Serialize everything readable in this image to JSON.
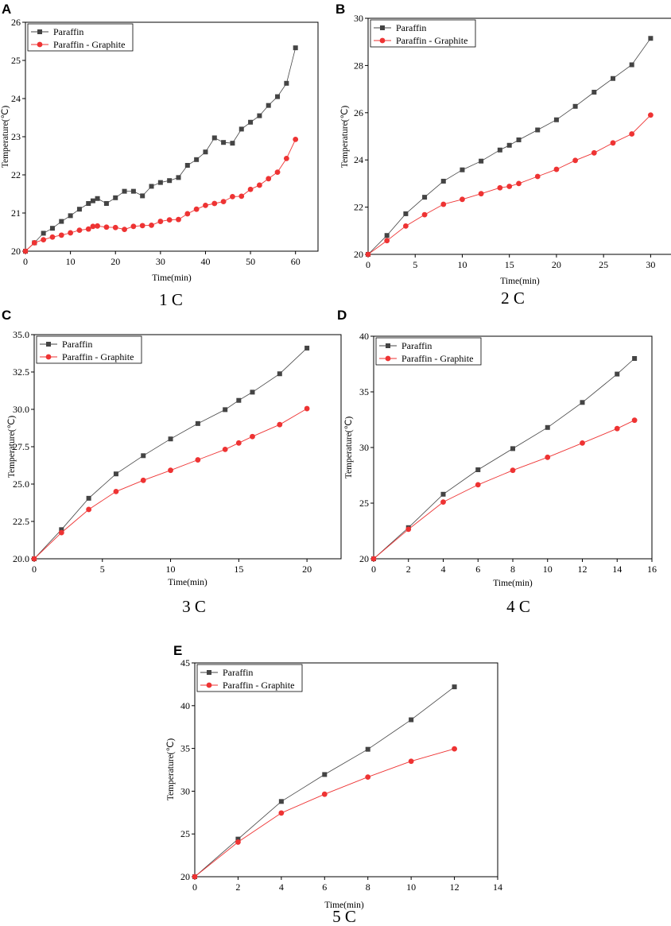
{
  "chart_data": [
    {
      "panel": "A",
      "caption": "1 C",
      "type": "line",
      "xlabel": "Time(min)",
      "ylabel": "Temperature(℃)",
      "xlim": [
        0,
        65
      ],
      "ylim": [
        20,
        26
      ],
      "xticks": [
        0,
        10,
        20,
        30,
        40,
        50,
        60
      ],
      "yticks": [
        20,
        21,
        22,
        23,
        24,
        25,
        26
      ],
      "xtick_labels": [
        "0",
        "10",
        "20",
        "30",
        "40",
        "50",
        "60"
      ],
      "ytick_labels": [
        "20",
        "21",
        "22",
        "23",
        "24",
        "25",
        "26"
      ],
      "legend_position": "top-left",
      "series": [
        {
          "name": "Paraffin",
          "color": "#444444",
          "marker": "square",
          "x": [
            0,
            2,
            4,
            6,
            8,
            10,
            12,
            14,
            15,
            16,
            18,
            20,
            22,
            24,
            26,
            28,
            30,
            32,
            34,
            36,
            38,
            40,
            42,
            44,
            46,
            48,
            50,
            52,
            54,
            56,
            58,
            60
          ],
          "y": [
            20.0,
            20.22,
            20.47,
            20.6,
            20.78,
            20.93,
            21.1,
            21.25,
            21.32,
            21.38,
            21.25,
            21.4,
            21.57,
            21.57,
            21.45,
            21.7,
            21.8,
            21.85,
            21.93,
            22.25,
            22.4,
            22.6,
            22.97,
            22.85,
            22.83,
            23.2,
            23.38,
            23.55,
            23.82,
            24.05,
            24.4,
            25.33
          ]
        },
        {
          "name": "Paraffin - Graphite",
          "color": "#ee3333",
          "marker": "circle",
          "x": [
            0,
            2,
            4,
            6,
            8,
            10,
            12,
            14,
            15,
            16,
            18,
            20,
            22,
            24,
            26,
            28,
            30,
            32,
            34,
            36,
            38,
            40,
            42,
            44,
            46,
            48,
            50,
            52,
            54,
            56,
            58,
            60
          ],
          "y": [
            20.0,
            20.22,
            20.3,
            20.37,
            20.42,
            20.48,
            20.55,
            20.58,
            20.65,
            20.66,
            20.63,
            20.62,
            20.57,
            20.65,
            20.67,
            20.68,
            20.78,
            20.82,
            20.83,
            20.98,
            21.1,
            21.2,
            21.25,
            21.3,
            21.43,
            21.44,
            21.62,
            21.73,
            21.9,
            22.07,
            22.43,
            22.93
          ]
        }
      ]
    },
    {
      "panel": "B",
      "caption": "2 C",
      "type": "line",
      "xlabel": "Time(min)",
      "ylabel": "Temperature(℃)",
      "xlim": [
        0,
        32.5
      ],
      "ylim": [
        20,
        30
      ],
      "xticks": [
        0,
        5,
        10,
        15,
        20,
        25,
        30
      ],
      "yticks": [
        20,
        22,
        24,
        26,
        28,
        30
      ],
      "xtick_labels": [
        "0",
        "5",
        "10",
        "15",
        "20",
        "25",
        "30"
      ],
      "ytick_labels": [
        "20",
        "22",
        "24",
        "26",
        "28",
        "30"
      ],
      "legend_position": "top-left",
      "series": [
        {
          "name": "Paraffin",
          "color": "#444444",
          "marker": "square",
          "x": [
            0,
            2,
            4,
            6,
            8,
            10,
            12,
            14,
            15,
            16,
            18,
            20,
            22,
            24,
            26,
            28,
            30
          ],
          "y": [
            20.0,
            20.8,
            21.72,
            22.42,
            23.1,
            23.58,
            23.95,
            24.42,
            24.62,
            24.85,
            25.27,
            25.7,
            26.27,
            26.87,
            27.45,
            28.03,
            29.15
          ]
        },
        {
          "name": "Paraffin - Graphite",
          "color": "#ee3333",
          "marker": "circle",
          "x": [
            0,
            2,
            4,
            6,
            8,
            10,
            12,
            14,
            15,
            16,
            18,
            20,
            22,
            24,
            26,
            28,
            30
          ],
          "y": [
            20.0,
            20.58,
            21.2,
            21.68,
            22.12,
            22.33,
            22.57,
            22.82,
            22.88,
            23.0,
            23.3,
            23.6,
            23.98,
            24.3,
            24.72,
            25.1,
            25.9
          ]
        }
      ]
    },
    {
      "panel": "C",
      "caption": "3 C",
      "type": "line",
      "xlabel": "Time(min)",
      "ylabel": "Temperature(℃)",
      "xlim": [
        0,
        22.5
      ],
      "ylim": [
        20,
        35
      ],
      "xticks": [
        0,
        5,
        10,
        15,
        20
      ],
      "yticks": [
        20,
        22.5,
        25,
        27.5,
        30,
        32.5,
        35
      ],
      "xtick_labels": [
        "0",
        "5",
        "10",
        "15",
        "20"
      ],
      "ytick_labels": [
        "20.0",
        "22.5",
        "25.0",
        "27.5",
        "30.0",
        "32.5",
        "35.0"
      ],
      "legend_position": "top-left",
      "series": [
        {
          "name": "Paraffin",
          "color": "#444444",
          "marker": "square",
          "x": [
            0,
            2,
            4,
            6,
            8,
            10,
            12,
            14,
            15,
            16,
            18,
            20
          ],
          "y": [
            20.0,
            21.95,
            24.05,
            25.68,
            26.9,
            28.02,
            29.05,
            29.98,
            30.6,
            31.15,
            32.38,
            34.1
          ]
        },
        {
          "name": "Paraffin - Graphite",
          "color": "#ee3333",
          "marker": "circle",
          "x": [
            0,
            2,
            4,
            6,
            8,
            10,
            12,
            14,
            15,
            16,
            18,
            20
          ],
          "y": [
            20.0,
            21.75,
            23.3,
            24.5,
            25.25,
            25.92,
            26.62,
            27.32,
            27.75,
            28.18,
            28.98,
            30.05
          ]
        }
      ]
    },
    {
      "panel": "D",
      "caption": "4 C",
      "type": "line",
      "xlabel": "Time(min)",
      "ylabel": "Temperature(℃)",
      "xlim": [
        0,
        16
      ],
      "ylim": [
        20,
        40
      ],
      "xticks": [
        0,
        2,
        4,
        6,
        8,
        10,
        12,
        14,
        16
      ],
      "yticks": [
        20,
        25,
        30,
        35,
        40
      ],
      "xtick_labels": [
        "0",
        "2",
        "4",
        "6",
        "8",
        "10",
        "12",
        "14",
        "16"
      ],
      "ytick_labels": [
        "20",
        "25",
        "30",
        "35",
        "40"
      ],
      "legend_position": "top-left",
      "series": [
        {
          "name": "Paraffin",
          "color": "#444444",
          "marker": "square",
          "x": [
            0,
            2,
            4,
            6,
            8,
            10,
            12,
            14,
            15
          ],
          "y": [
            20.0,
            22.8,
            25.8,
            28.0,
            29.9,
            31.8,
            34.05,
            36.6,
            38.0
          ]
        },
        {
          "name": "Paraffin - Graphite",
          "color": "#ee3333",
          "marker": "circle",
          "x": [
            0,
            2,
            4,
            6,
            8,
            10,
            12,
            14,
            15
          ],
          "y": [
            20.0,
            22.65,
            25.1,
            26.65,
            27.95,
            29.12,
            30.4,
            31.7,
            32.45
          ]
        }
      ]
    },
    {
      "panel": "E",
      "caption": "5 C",
      "type": "line",
      "xlabel": "Time(min)",
      "ylabel": "Temperature(℃)",
      "xlim": [
        0,
        14
      ],
      "ylim": [
        20,
        45
      ],
      "xticks": [
        0,
        2,
        4,
        6,
        8,
        10,
        12,
        14
      ],
      "yticks": [
        20,
        25,
        30,
        35,
        40,
        45
      ],
      "xtick_labels": [
        "0",
        "2",
        "4",
        "6",
        "8",
        "10",
        "12",
        "14"
      ],
      "ytick_labels": [
        "20",
        "25",
        "30",
        "35",
        "40",
        "45"
      ],
      "legend_position": "top-left",
      "series": [
        {
          "name": "Paraffin",
          "color": "#444444",
          "marker": "square",
          "x": [
            0,
            2,
            4,
            6,
            8,
            10,
            12
          ],
          "y": [
            20.0,
            24.4,
            28.8,
            31.95,
            34.9,
            38.35,
            42.2
          ]
        },
        {
          "name": "Paraffin - Graphite",
          "color": "#ee3333",
          "marker": "circle",
          "x": [
            0,
            2,
            4,
            6,
            8,
            10,
            12
          ],
          "y": [
            20.0,
            24.05,
            27.45,
            29.65,
            31.65,
            33.5,
            34.95
          ]
        }
      ]
    }
  ]
}
